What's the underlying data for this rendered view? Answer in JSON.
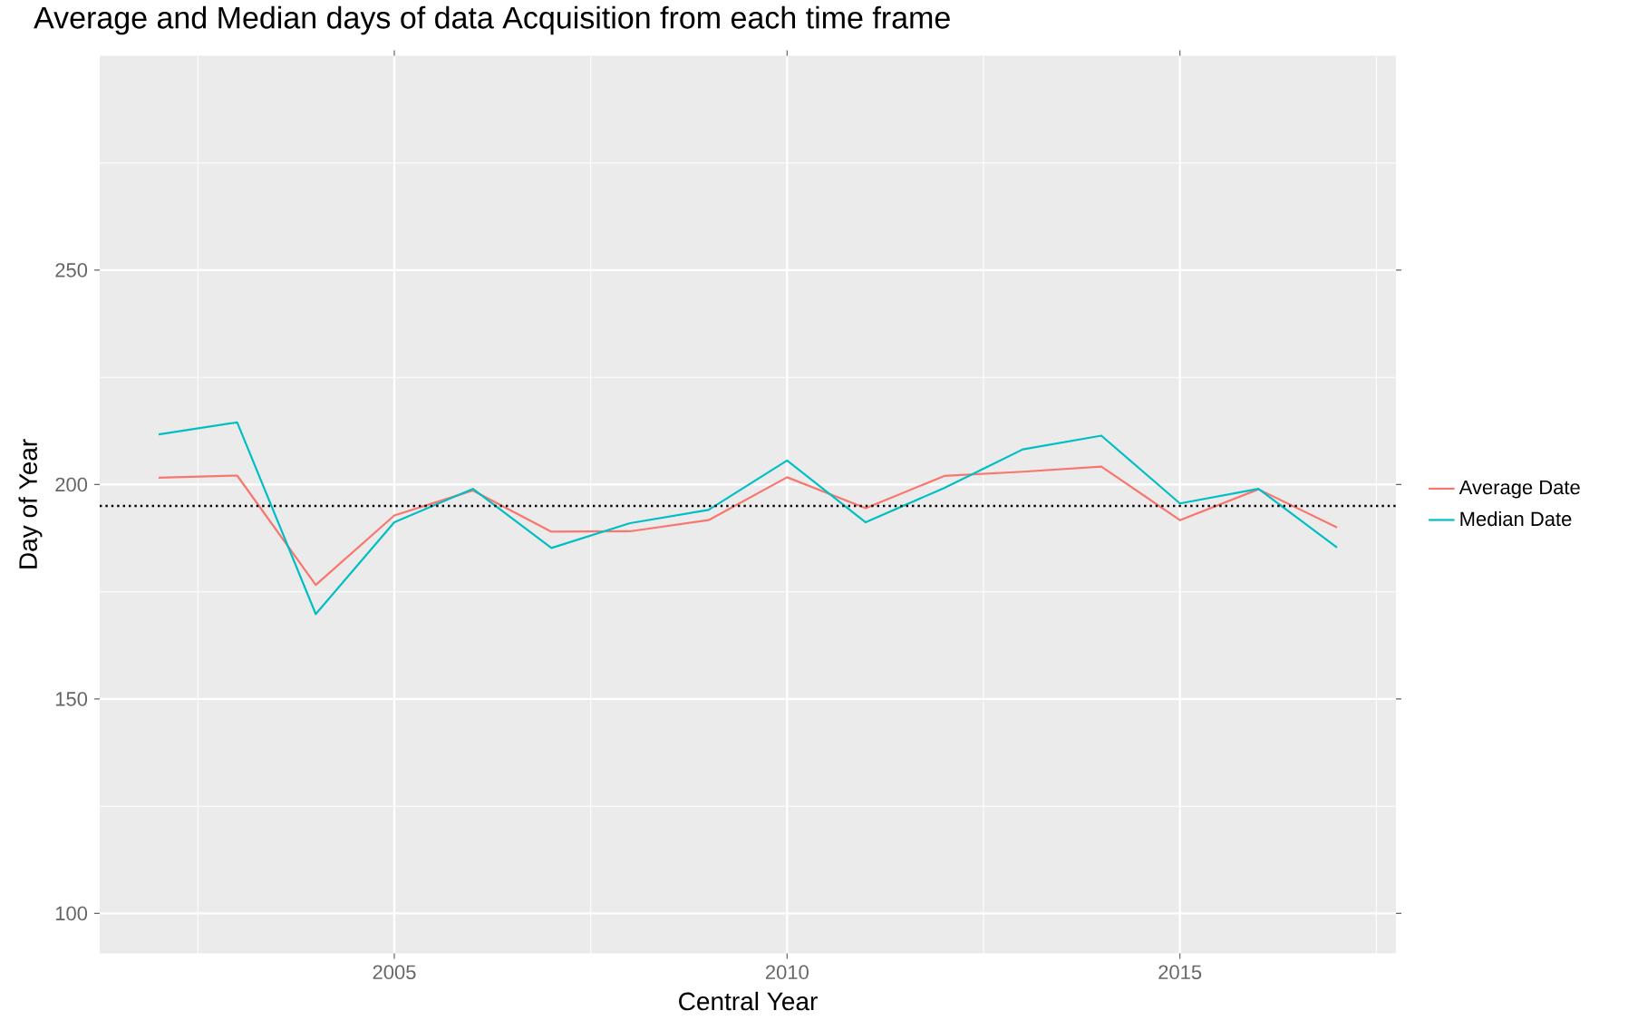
{
  "chart_data": {
    "type": "line",
    "title": "Average and Median days of data Acquisition from each time frame",
    "xlabel": "Central Year",
    "ylabel": "Day of Year",
    "x": [
      2002,
      2003,
      2004,
      2005,
      2006,
      2007,
      2008,
      2009,
      2010,
      2011,
      2012,
      2013,
      2014,
      2015,
      2016,
      2017
    ],
    "series": [
      {
        "name": "Average Date",
        "color": "#f8766d",
        "values": [
          201.6,
          202.1,
          176.6,
          192.8,
          198.6,
          189.0,
          189.1,
          191.7,
          201.7,
          194.5,
          202.0,
          203.0,
          204.2,
          191.7,
          198.9,
          190.0
        ]
      },
      {
        "name": "Median Date",
        "color": "#00bfc4",
        "values": [
          211.7,
          214.5,
          169.8,
          191.2,
          199.0,
          185.2,
          191.0,
          194.1,
          205.6,
          191.2,
          199.2,
          208.2,
          211.4,
          195.6,
          199.0,
          185.3
        ]
      }
    ],
    "xlim": [
      2001.25,
      2017.75
    ],
    "ylim": [
      90.7,
      300
    ],
    "xticks": [
      2005,
      2010,
      2015
    ],
    "yticks": [
      100,
      150,
      200,
      250
    ],
    "ref_lines": [
      {
        "axis": "y",
        "value": 195,
        "color": "#000000",
        "line_style": "dotted"
      }
    ],
    "grid": true,
    "legend": "right",
    "line_style": "solid",
    "marker": "none"
  }
}
